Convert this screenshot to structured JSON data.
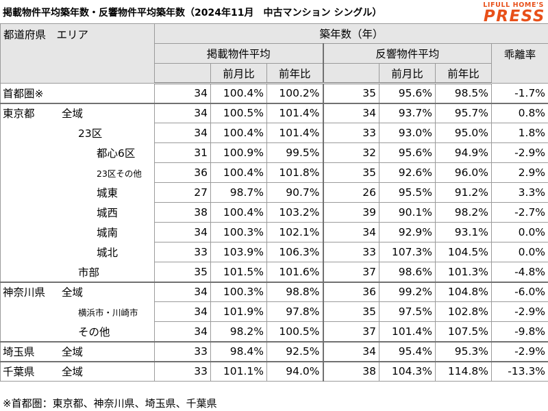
{
  "title": "掲載物件平均築年数・反響物件平均築年数（2024年11月　中古マンション シングル）",
  "logo": {
    "top": "LIFULL HOME'S",
    "main": "PRESS"
  },
  "header": {
    "corner": "都道府県　エリア",
    "age": "築年数（年）",
    "listing": "掲載物件平均",
    "response": "反響物件平均",
    "divergence": "乖離率",
    "mom": "前月比",
    "yoy": "前年比"
  },
  "rows": [
    {
      "pref": "首都圏※",
      "area": "",
      "listing_age": "34",
      "listing_mom": "100.4%",
      "listing_yoy": "100.2%",
      "response_age": "35",
      "response_mom": "95.6%",
      "response_yoy": "98.5%",
      "divergence": "-1.7%"
    },
    {
      "pref": "東京都",
      "area": "全域",
      "listing_age": "34",
      "listing_mom": "100.5%",
      "listing_yoy": "101.4%",
      "response_age": "34",
      "response_mom": "93.7%",
      "response_yoy": "95.7%",
      "divergence": "0.8%"
    },
    {
      "pref": "",
      "area": "23区",
      "listing_age": "34",
      "listing_mom": "100.4%",
      "listing_yoy": "101.4%",
      "response_age": "33",
      "response_mom": "93.0%",
      "response_yoy": "95.0%",
      "divergence": "1.8%"
    },
    {
      "pref": "",
      "area": "都心6区",
      "listing_age": "31",
      "listing_mom": "100.9%",
      "listing_yoy": "99.5%",
      "response_age": "32",
      "response_mom": "95.6%",
      "response_yoy": "94.9%",
      "divergence": "-2.9%"
    },
    {
      "pref": "",
      "area": "23区その他",
      "listing_age": "36",
      "listing_mom": "100.4%",
      "listing_yoy": "101.8%",
      "response_age": "35",
      "response_mom": "92.6%",
      "response_yoy": "96.0%",
      "divergence": "2.9%"
    },
    {
      "pref": "",
      "area": "城東",
      "listing_age": "27",
      "listing_mom": "98.7%",
      "listing_yoy": "90.7%",
      "response_age": "26",
      "response_mom": "95.5%",
      "response_yoy": "91.2%",
      "divergence": "3.3%"
    },
    {
      "pref": "",
      "area": "城西",
      "listing_age": "38",
      "listing_mom": "100.4%",
      "listing_yoy": "103.2%",
      "response_age": "39",
      "response_mom": "90.1%",
      "response_yoy": "98.2%",
      "divergence": "-2.7%"
    },
    {
      "pref": "",
      "area": "城南",
      "listing_age": "34",
      "listing_mom": "100.3%",
      "listing_yoy": "102.1%",
      "response_age": "34",
      "response_mom": "92.9%",
      "response_yoy": "93.1%",
      "divergence": "0.0%"
    },
    {
      "pref": "",
      "area": "城北",
      "listing_age": "33",
      "listing_mom": "103.9%",
      "listing_yoy": "106.3%",
      "response_age": "33",
      "response_mom": "107.3%",
      "response_yoy": "104.5%",
      "divergence": "0.0%"
    },
    {
      "pref": "",
      "area": "市部",
      "listing_age": "35",
      "listing_mom": "101.5%",
      "listing_yoy": "101.6%",
      "response_age": "37",
      "response_mom": "98.6%",
      "response_yoy": "101.3%",
      "divergence": "-4.8%"
    },
    {
      "pref": "神奈川県",
      "area": "全域",
      "listing_age": "34",
      "listing_mom": "100.3%",
      "listing_yoy": "98.8%",
      "response_age": "36",
      "response_mom": "99.2%",
      "response_yoy": "104.8%",
      "divergence": "-6.0%"
    },
    {
      "pref": "",
      "area": "横浜市・川崎市",
      "listing_age": "34",
      "listing_mom": "101.9%",
      "listing_yoy": "97.8%",
      "response_age": "35",
      "response_mom": "97.5%",
      "response_yoy": "102.8%",
      "divergence": "-2.9%"
    },
    {
      "pref": "",
      "area": "その他",
      "listing_age": "34",
      "listing_mom": "98.2%",
      "listing_yoy": "100.5%",
      "response_age": "37",
      "response_mom": "101.4%",
      "response_yoy": "107.5%",
      "divergence": "-9.8%"
    },
    {
      "pref": "埼玉県",
      "area": "全域",
      "listing_age": "33",
      "listing_mom": "98.4%",
      "listing_yoy": "92.5%",
      "response_age": "34",
      "response_mom": "95.4%",
      "response_yoy": "95.3%",
      "divergence": "-2.9%"
    },
    {
      "pref": "千葉県",
      "area": "全域",
      "listing_age": "33",
      "listing_mom": "101.1%",
      "listing_yoy": "94.0%",
      "response_age": "38",
      "response_mom": "104.3%",
      "response_yoy": "114.8%",
      "divergence": "-13.3%"
    }
  ],
  "footnote": "※首都圏：東京都、神奈川県、埼玉県、千葉県"
}
